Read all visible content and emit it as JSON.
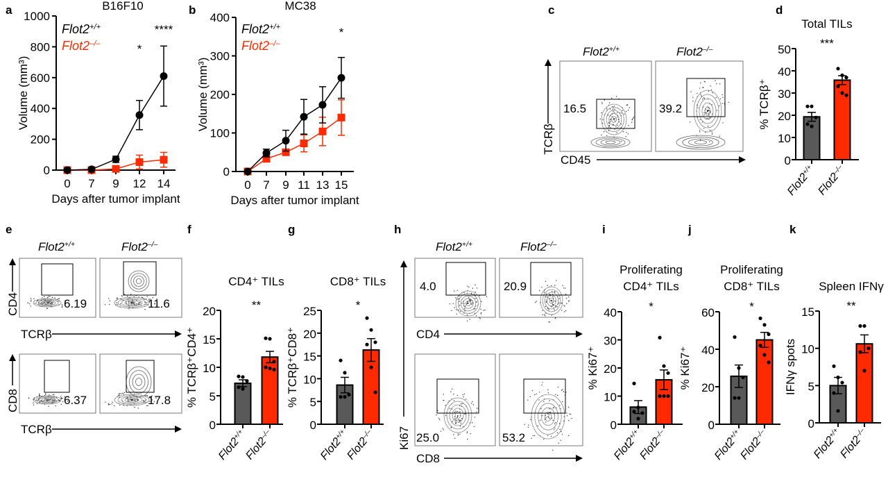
{
  "genotypes": {
    "wt": {
      "base": "Flot2",
      "sup": "+/+"
    },
    "ko": {
      "base": "Flot2",
      "sup": "–/–"
    }
  },
  "colors": {
    "wt": "#000000",
    "ko": "#ff2a00",
    "wt_bar": "#595959",
    "ko_bar": "#ff2a00"
  },
  "chart_data": [
    {
      "panel": "a",
      "type": "line",
      "title": "B16F10",
      "xlabel": "Days after tumor implant",
      "ylabel": "Volume (mm³)",
      "categories": [
        "0",
        "7",
        "9",
        "12",
        "14"
      ],
      "ylim": [
        0,
        1000
      ],
      "yticks": [
        0,
        200,
        400,
        600,
        800,
        1000
      ],
      "significance": [
        {
          "category": "12",
          "label": "*"
        },
        {
          "category": "14",
          "label": "****"
        }
      ],
      "legend": "top-left",
      "series": [
        {
          "name": "Flot2+/+",
          "genotype": "wt",
          "marker": "circle",
          "values": [
            0,
            5,
            70,
            357,
            610
          ],
          "error": [
            5,
            5,
            20,
            95,
            195
          ]
        },
        {
          "name": "Flot2-/-",
          "genotype": "ko",
          "marker": "square",
          "values": [
            0,
            0,
            8,
            52,
            67
          ],
          "error": [
            5,
            5,
            10,
            45,
            48
          ]
        }
      ]
    },
    {
      "panel": "b",
      "type": "line",
      "title": "MC38",
      "xlabel": "Days after tumor implant",
      "ylabel": "Volume (mm³)",
      "categories": [
        "0",
        "7",
        "9",
        "11",
        "13",
        "15"
      ],
      "ylim": [
        0,
        400
      ],
      "yticks": [
        0,
        100,
        200,
        300,
        400
      ],
      "significance": [
        {
          "category": "15",
          "label": "*"
        }
      ],
      "legend": "top-left",
      "series": [
        {
          "name": "Flot2+/+",
          "genotype": "wt",
          "marker": "circle",
          "values": [
            0,
            48,
            80,
            142,
            173,
            243
          ],
          "error": [
            0,
            10,
            27,
            45,
            47,
            53
          ]
        },
        {
          "name": "Flot2-/-",
          "genotype": "ko",
          "marker": "square",
          "values": [
            0,
            33,
            50,
            73,
            104,
            140
          ],
          "error": [
            0,
            5,
            8,
            22,
            37,
            46
          ]
        }
      ]
    },
    {
      "panel": "d",
      "type": "bar",
      "title": "Total TILs",
      "ylabel": "% TCRβ⁺",
      "ylim": [
        0,
        50
      ],
      "yticks": [
        0,
        10,
        20,
        30,
        40,
        50
      ],
      "significance": "***",
      "bars": [
        {
          "genotype": "wt",
          "mean": 19.3,
          "sem": 2.0,
          "points": [
            24,
            24,
            19,
            16,
            15
          ]
        },
        {
          "genotype": "ko",
          "mean": 35.8,
          "sem": 2.0,
          "points": [
            41,
            38,
            37,
            33,
            30,
            29
          ]
        }
      ]
    },
    {
      "panel": "f",
      "type": "bar",
      "title": "CD4⁺ TILs",
      "ylabel": "% TCRβ⁺CD4⁺",
      "ylim": [
        0,
        20
      ],
      "yticks": [
        0,
        5,
        10,
        15,
        20
      ],
      "significance": "**",
      "bars": [
        {
          "genotype": "wt",
          "mean": 7.2,
          "sem": 0.6,
          "points": [
            8.4,
            8.3,
            7.6,
            6.5,
            6.2
          ]
        },
        {
          "genotype": "ko",
          "mean": 11.8,
          "sem": 1.0,
          "points": [
            15.1,
            15.0,
            11.0,
            10.0,
            9.8,
            9.6
          ]
        }
      ]
    },
    {
      "panel": "g",
      "type": "bar",
      "title": "CD8⁺ TILs",
      "ylabel": "% TCRβ⁺CD8⁺",
      "ylim": [
        0,
        25
      ],
      "yticks": [
        0,
        5,
        10,
        15,
        20,
        25
      ],
      "significance": "*",
      "bars": [
        {
          "genotype": "wt",
          "mean": 8.6,
          "sem": 1.7,
          "points": [
            14,
            11.3,
            6.5,
            6,
            6
          ]
        },
        {
          "genotype": "ko",
          "mean": 16.3,
          "sem": 2.5,
          "points": [
            23.3,
            20.7,
            18,
            17.5,
            12.5,
            7
          ]
        }
      ]
    },
    {
      "panel": "i",
      "type": "bar",
      "title": "Proliferating",
      "title2": "CD4⁺ TILs",
      "ylabel": "% Ki67⁺",
      "ylim": [
        0,
        40
      ],
      "yticks": [
        0,
        10,
        20,
        30,
        40
      ],
      "significance": "*",
      "bars": [
        {
          "genotype": "wt",
          "mean": 6.1,
          "sem": 2.3,
          "points": [
            14.5,
            6,
            4,
            4.5,
            2
          ]
        },
        {
          "genotype": "ko",
          "mean": 15.8,
          "sem": 3.5,
          "points": [
            30.8,
            20.7,
            18.2,
            10,
            10,
            10
          ]
        }
      ]
    },
    {
      "panel": "j",
      "type": "bar",
      "title": "Proliferating",
      "title2": "CD8⁺ TILs",
      "ylabel": "% Ki67⁺",
      "ylim": [
        0,
        60
      ],
      "yticks": [
        0,
        20,
        40,
        60
      ],
      "significance": "*",
      "bars": [
        {
          "genotype": "wt",
          "mean": 25.6,
          "sem": 6.0,
          "points": [
            46.5,
            30,
            25,
            14,
            14
          ]
        },
        {
          "genotype": "ko",
          "mean": 45.0,
          "sem": 4.0,
          "points": [
            56.5,
            53,
            48,
            42,
            37,
            33
          ]
        }
      ]
    },
    {
      "panel": "k",
      "type": "bar",
      "title": "Spleen IFNγ",
      "ylabel": "IFNγ spots",
      "ylim": [
        0,
        15
      ],
      "yticks": [
        0,
        5,
        10,
        15
      ],
      "significance": "**",
      "bars": [
        {
          "genotype": "wt",
          "mean": 5.0,
          "sem": 1.1,
          "points": [
            7.6,
            6.1,
            5.4,
            4,
            1.6
          ]
        },
        {
          "genotype": "ko",
          "mean": 10.6,
          "sem": 1.2,
          "points": [
            13,
            13,
            10,
            9.5,
            7
          ]
        }
      ]
    }
  ],
  "flow": {
    "c": {
      "panel": "c",
      "yaxis": "TCRβ",
      "xaxis": "CD45",
      "values": [
        "16.5",
        "39.2"
      ]
    },
    "e_top": {
      "panel": "e",
      "yaxis": "CD4",
      "xaxis": "TCRβ",
      "values": [
        "6.19",
        "11.6"
      ]
    },
    "e_bottom": {
      "yaxis": "CD8",
      "xaxis": "TCRβ",
      "values": [
        "6.37",
        "17.8"
      ]
    },
    "h_top": {
      "panel": "h",
      "xaxis": "CD4",
      "values": [
        "4.0",
        "20.9"
      ]
    },
    "h_bottom": {
      "yaxis": "Ki67",
      "xaxis": "CD8",
      "values": [
        "25.0",
        "53.2"
      ]
    }
  }
}
